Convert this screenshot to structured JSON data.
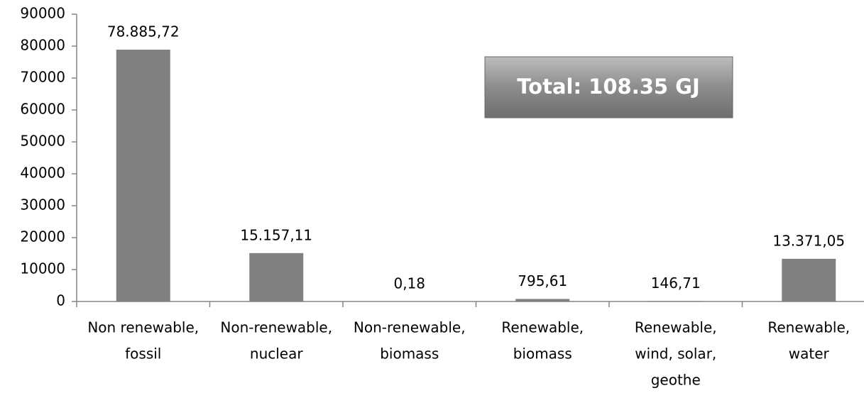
{
  "chart_data": {
    "type": "bar",
    "categories": [
      [
        "Non renewable,",
        "fossil"
      ],
      [
        "Non-renewable,",
        "nuclear"
      ],
      [
        "Non-renewable,",
        "biomass"
      ],
      [
        "Renewable,",
        "biomass"
      ],
      [
        "Renewable,",
        "wind, solar,",
        "geothe"
      ],
      [
        "Renewable,",
        "water"
      ]
    ],
    "values": [
      78885.72,
      15157.11,
      0.18,
      795.61,
      146.71,
      13371.05
    ],
    "value_labels": [
      "78.885,72",
      "15.157,11",
      "0,18",
      "795,61",
      "146,71",
      "13.371,05"
    ],
    "color": "#808080",
    "ylim": [
      0,
      90000
    ],
    "yticks": [
      0,
      10000,
      20000,
      30000,
      40000,
      50000,
      60000,
      70000,
      80000,
      90000
    ],
    "annotation": "Total: 108.35 GJ"
  }
}
